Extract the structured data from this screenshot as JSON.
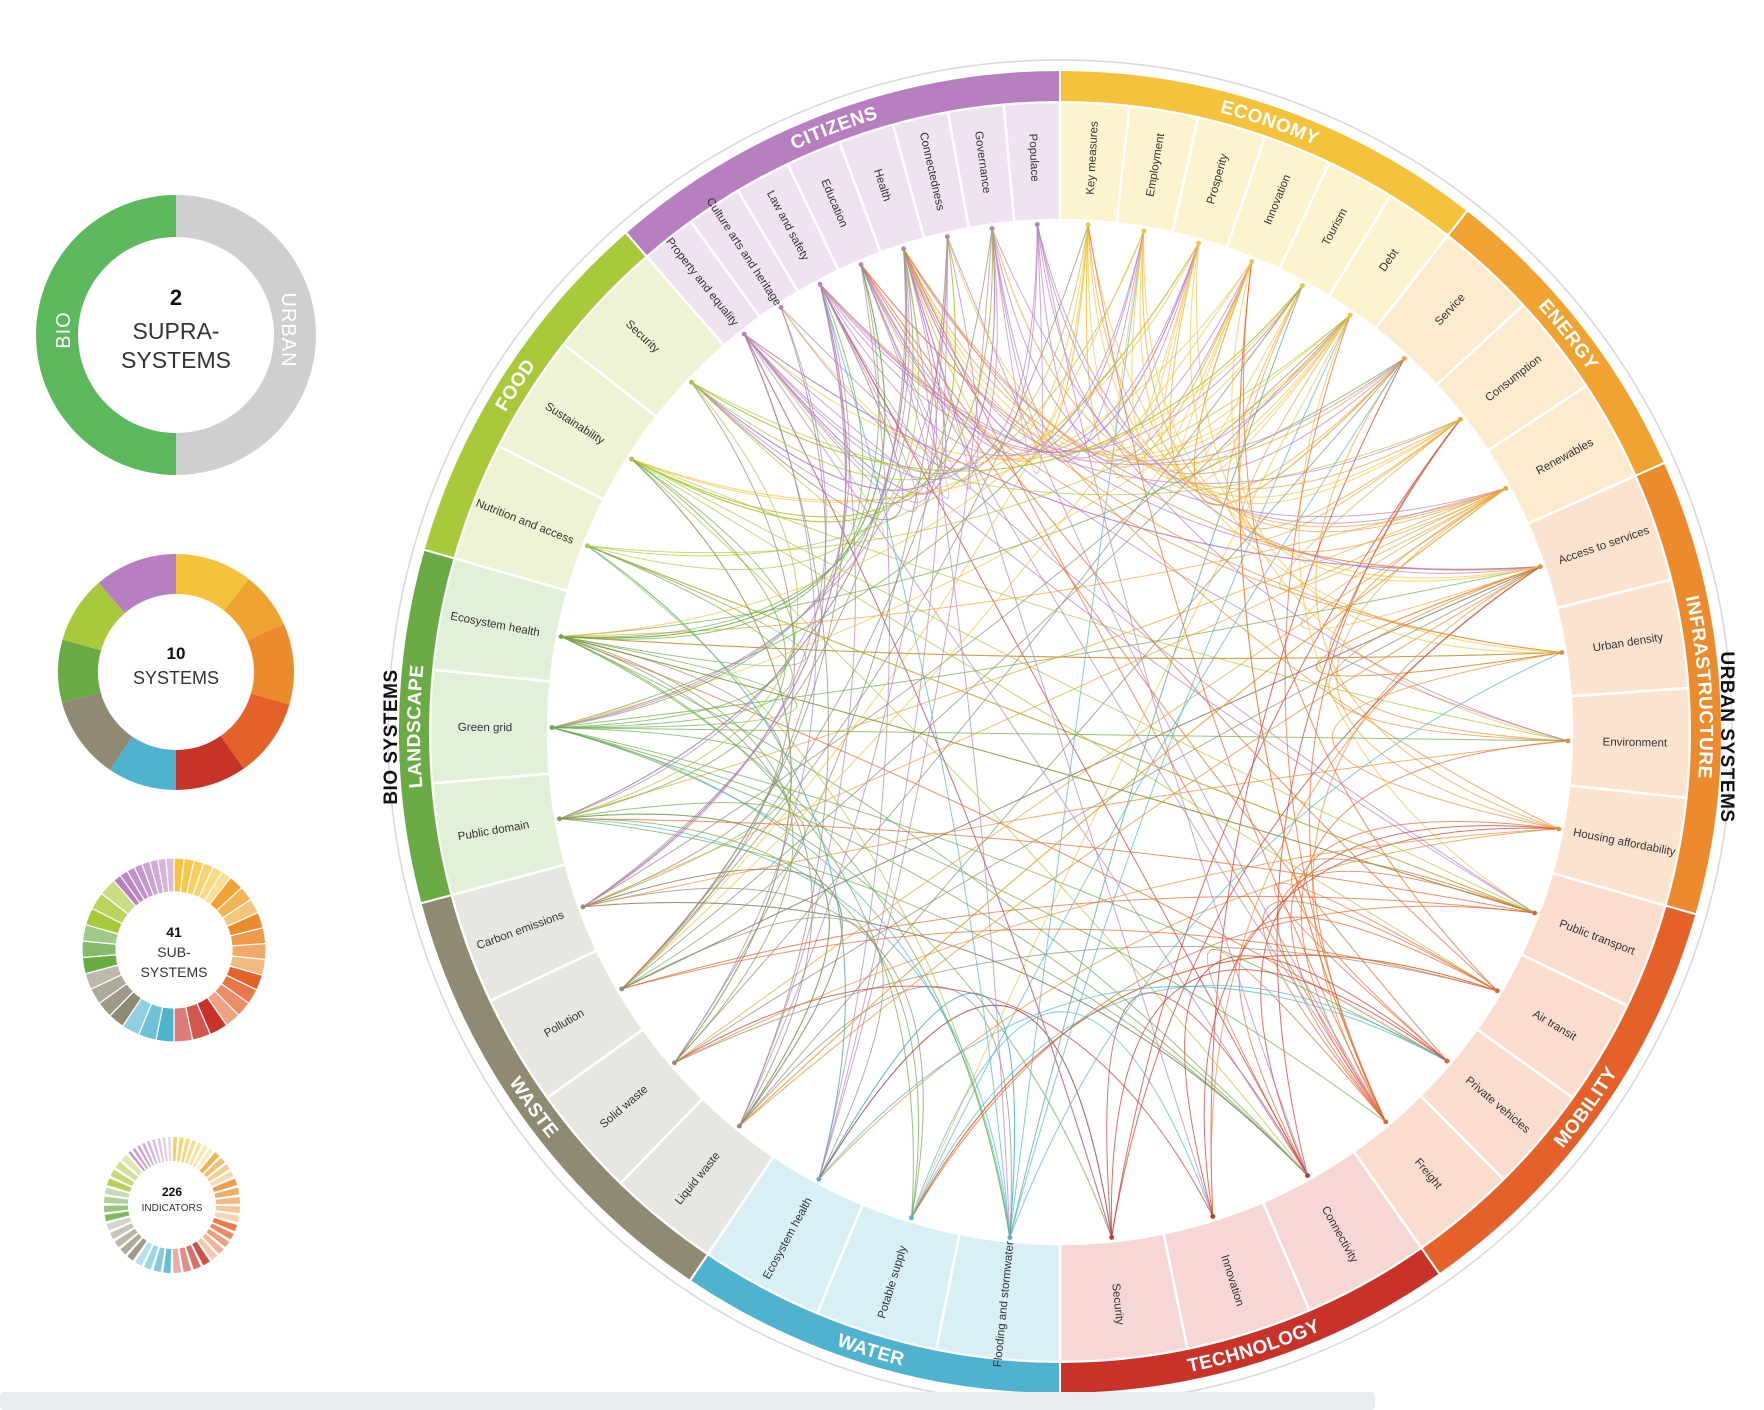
{
  "side_labels": {
    "left": "BIO SYSTEMS",
    "right": "URBAN SYSTEMS"
  },
  "legend": {
    "supra": {
      "number": "2",
      "line1": "SUPRA-",
      "line2": "SYSTEMS",
      "left_label": "BIO",
      "right_label": "URBAN",
      "colors": {
        "bio": "#5cb85c",
        "urban": "#cfcfcf"
      }
    },
    "systems": {
      "number": "10",
      "line1": "SYSTEMS"
    },
    "subsystems": {
      "number": "41",
      "line1": "SUB-",
      "line2": "SYSTEMS"
    },
    "indicators": {
      "number": "226",
      "line1": "INDICATORS"
    }
  },
  "systems": [
    {
      "name": "ECONOMY",
      "color": "#f5c33b",
      "light": "#fdf3cf",
      "subs": [
        "Key measures",
        "Employment",
        "Prosperity",
        "Innovation",
        "Tourism",
        "Debt"
      ]
    },
    {
      "name": "ENERGY",
      "color": "#f0a330",
      "light": "#fdebd0",
      "subs": [
        "Service",
        "Consumption",
        "Renewables"
      ]
    },
    {
      "name": "INFRASTRUCTURE",
      "color": "#ec8a2e",
      "light": "#fce3cf",
      "subs": [
        "Access to services",
        "Urban density",
        "Environment",
        "Housing affordability"
      ]
    },
    {
      "name": "MOBILITY",
      "color": "#e4622a",
      "light": "#fbddd0",
      "subs": [
        "Public transport",
        "Air transit",
        "Private vehicles",
        "Freight"
      ]
    },
    {
      "name": "TECHNOLOGY",
      "color": "#c83228",
      "light": "#f6d7d6",
      "subs": [
        "Connectivity",
        "Innovation",
        "Security"
      ]
    },
    {
      "name": "WATER",
      "color": "#4fb3cf",
      "light": "#d8eff5",
      "subs": [
        "Flooding and stormwater",
        "Potable supply",
        "Ecosystem health"
      ]
    },
    {
      "name": "WASTE",
      "color": "#8f8a74",
      "light": "#e7e6e1",
      "subs": [
        "Liquid waste",
        "Solid waste",
        "Pollution",
        "Carbon emissions"
      ]
    },
    {
      "name": "LANDSCAPE",
      "color": "#6aab46",
      "light": "#e2efd9",
      "subs": [
        "Public domain",
        "Green grid",
        "Ecosystem health"
      ]
    },
    {
      "name": "FOOD",
      "color": "#a9c93a",
      "light": "#edf3d4",
      "subs": [
        "Nutrition and access",
        "Sustainability",
        "Security"
      ]
    },
    {
      "name": "CITIZENS",
      "color": "#b77fc0",
      "light": "#efe2f1",
      "subs": [
        "Property and equality",
        "Culture arts and heritage",
        "Law and safety",
        "Education",
        "Health",
        "Connectedness",
        "Governance",
        "Populace"
      ]
    }
  ]
}
